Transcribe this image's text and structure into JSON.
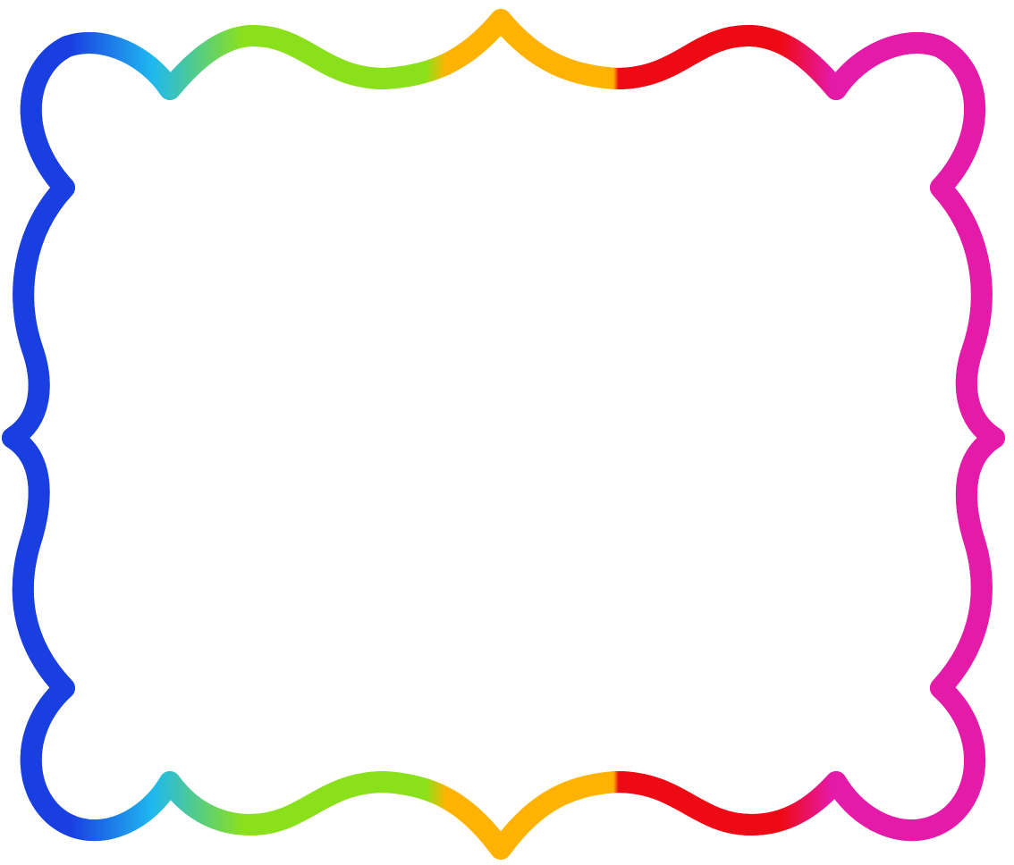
{
  "frame": {
    "style": "scalloped-double-line",
    "colors": {
      "blue": "#1a3fe0",
      "cyan": "#1fb8f0",
      "green": "#8be01c",
      "orange": "#ffb300",
      "red": "#ee0a14",
      "magenta": "#e41aa8",
      "background": "#ffffff"
    }
  }
}
